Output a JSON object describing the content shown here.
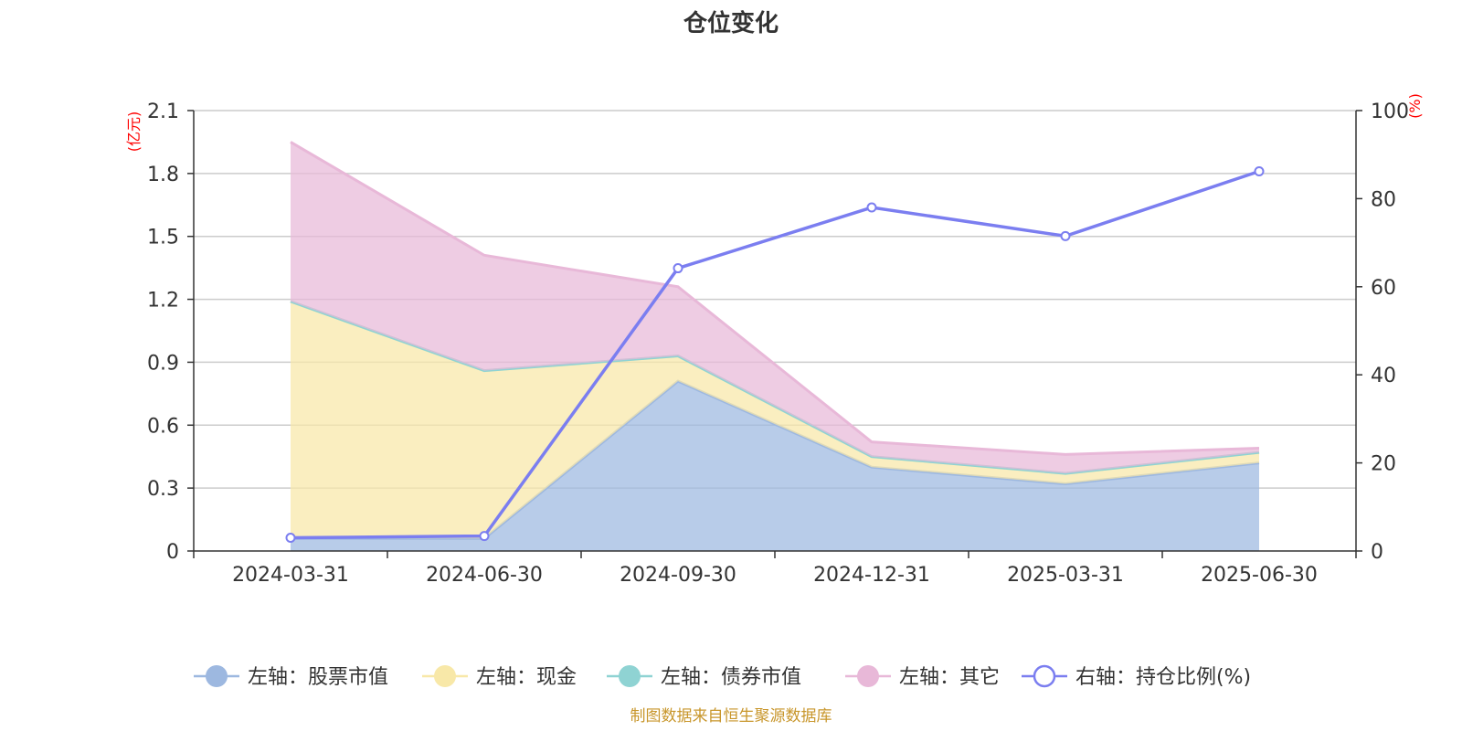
{
  "chart_data": {
    "type": "area",
    "title": "仓位变化",
    "left_unit": "(亿元)",
    "right_unit": "(%)",
    "categories": [
      "2024-03-31",
      "2024-06-30",
      "2024-09-30",
      "2024-12-31",
      "2025-03-31",
      "2025-06-30"
    ],
    "left_axis": {
      "ylim": [
        0,
        2.1
      ],
      "ticks": [
        "0",
        "0.3",
        "0.6",
        "0.9",
        "1.2",
        "1.5",
        "1.8",
        "2.1"
      ]
    },
    "right_axis": {
      "ylim": [
        0,
        100
      ],
      "ticks": [
        "0",
        "20",
        "40",
        "60",
        "80",
        "100"
      ]
    },
    "stacked": true,
    "series": [
      {
        "name": "左轴：股票市值",
        "axis": "left",
        "color": "#9db8e0",
        "values": [
          0.06,
          0.06,
          0.81,
          0.4,
          0.32,
          0.42
        ]
      },
      {
        "name": "左轴：现金",
        "axis": "left",
        "color": "#f8e8a8",
        "values": [
          1.13,
          0.8,
          0.12,
          0.05,
          0.05,
          0.05
        ]
      },
      {
        "name": "左轴：债券市值",
        "axis": "left",
        "color": "#8fd3d3",
        "values": [
          0,
          0,
          0,
          0,
          0,
          0
        ]
      },
      {
        "name": "左轴：其它",
        "axis": "left",
        "color": "#e8b8d8",
        "values": [
          0.76,
          0.55,
          0.33,
          0.07,
          0.09,
          0.02
        ]
      },
      {
        "name": "右轴：持仓比例(%)",
        "axis": "right",
        "color": "#7b7ef0",
        "type": "line",
        "values": [
          3.0,
          3.4,
          64.2,
          78.0,
          71.5,
          86.2
        ]
      }
    ],
    "grid": true,
    "legend_position": "bottom"
  },
  "source_note": "制图数据来自恒生聚源数据库"
}
